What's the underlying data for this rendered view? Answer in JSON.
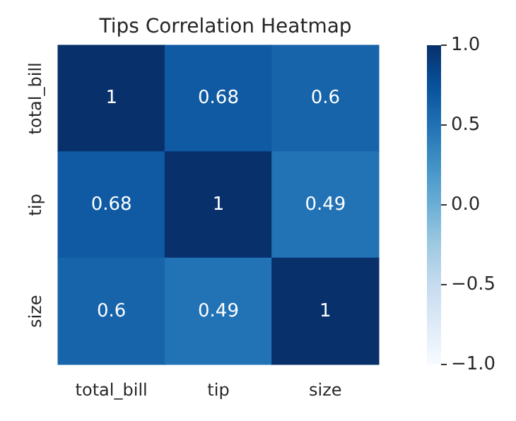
{
  "chart_data": {
    "type": "heatmap",
    "title": "Tips Correlation Heatmap",
    "categories": [
      "total_bill",
      "tip",
      "size"
    ],
    "y_categories": [
      "total_bill",
      "tip",
      "size"
    ],
    "cells": [
      [
        1,
        0.68,
        0.6
      ],
      [
        0.68,
        1,
        0.49
      ],
      [
        0.6,
        0.49,
        1
      ]
    ],
    "data_labels": true,
    "clim": [
      -1,
      1
    ],
    "cticks": [
      {
        "value": -1,
        "label": "−1.0"
      },
      {
        "value": -0.5,
        "label": "−0.5"
      },
      {
        "value": 0,
        "label": "0.0"
      },
      {
        "value": 0.5,
        "label": "0.5"
      },
      {
        "value": 1,
        "label": "1.0"
      }
    ]
  }
}
